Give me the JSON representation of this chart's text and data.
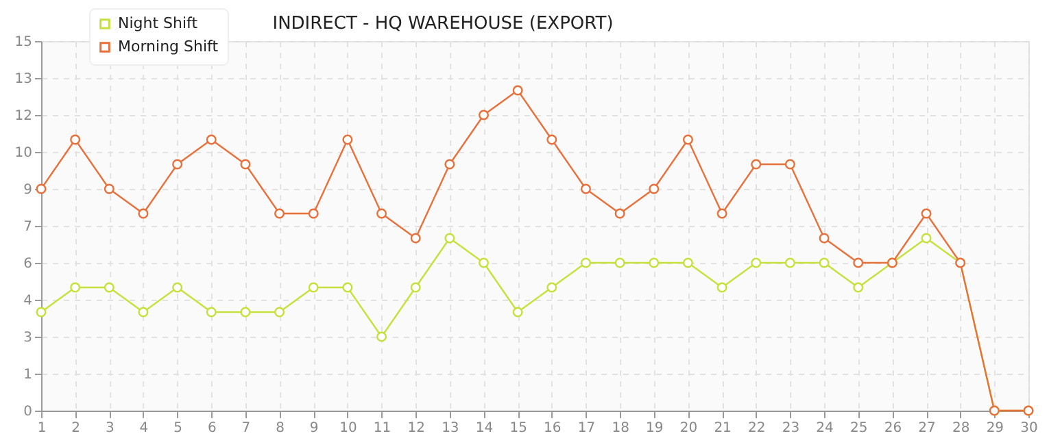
{
  "chart_data": {
    "type": "line",
    "title": "INDIRECT - HQ WAREHOUSE (EXPORT)",
    "x": [
      1,
      2,
      3,
      4,
      5,
      6,
      7,
      8,
      9,
      10,
      11,
      12,
      13,
      14,
      15,
      16,
      17,
      18,
      19,
      20,
      21,
      22,
      23,
      24,
      25,
      26,
      27,
      28,
      29,
      30
    ],
    "series": [
      {
        "name": "Night Shift",
        "color": "#c8e03c",
        "values": [
          4,
          5,
          5,
          4,
          5,
          4,
          4,
          4,
          5,
          5,
          3,
          5,
          7,
          6,
          4,
          5,
          6,
          6,
          6,
          6,
          5,
          6,
          6,
          6,
          5,
          6,
          7,
          6,
          0,
          0
        ]
      },
      {
        "name": "Morning Shift",
        "color": "#e8703a",
        "values": [
          9,
          11,
          9,
          8,
          10,
          11,
          10,
          8,
          8,
          11,
          8,
          7,
          10,
          12,
          13,
          11,
          9,
          8,
          9,
          11,
          8,
          10,
          10,
          7,
          6,
          6,
          8,
          6,
          0,
          0
        ]
      }
    ],
    "xlim": [
      1,
      30
    ],
    "xticks": [
      1,
      2,
      3,
      4,
      5,
      6,
      7,
      8,
      9,
      10,
      11,
      12,
      13,
      14,
      15,
      16,
      17,
      18,
      19,
      20,
      21,
      22,
      23,
      24,
      25,
      26,
      27,
      28,
      29,
      30
    ],
    "ylim": [
      0,
      15
    ],
    "yticks": [
      0,
      {
        "value": 1.5,
        "label": "1"
      },
      3,
      {
        "value": 4.5,
        "label": "4"
      },
      6,
      {
        "value": 7.5,
        "label": "7"
      },
      9,
      {
        "value": 10.5,
        "label": "10"
      },
      12,
      {
        "value": 13.5,
        "label": "13"
      },
      15
    ],
    "grid": true,
    "legend": "top left",
    "marker": "circle",
    "line_style": "solid"
  }
}
